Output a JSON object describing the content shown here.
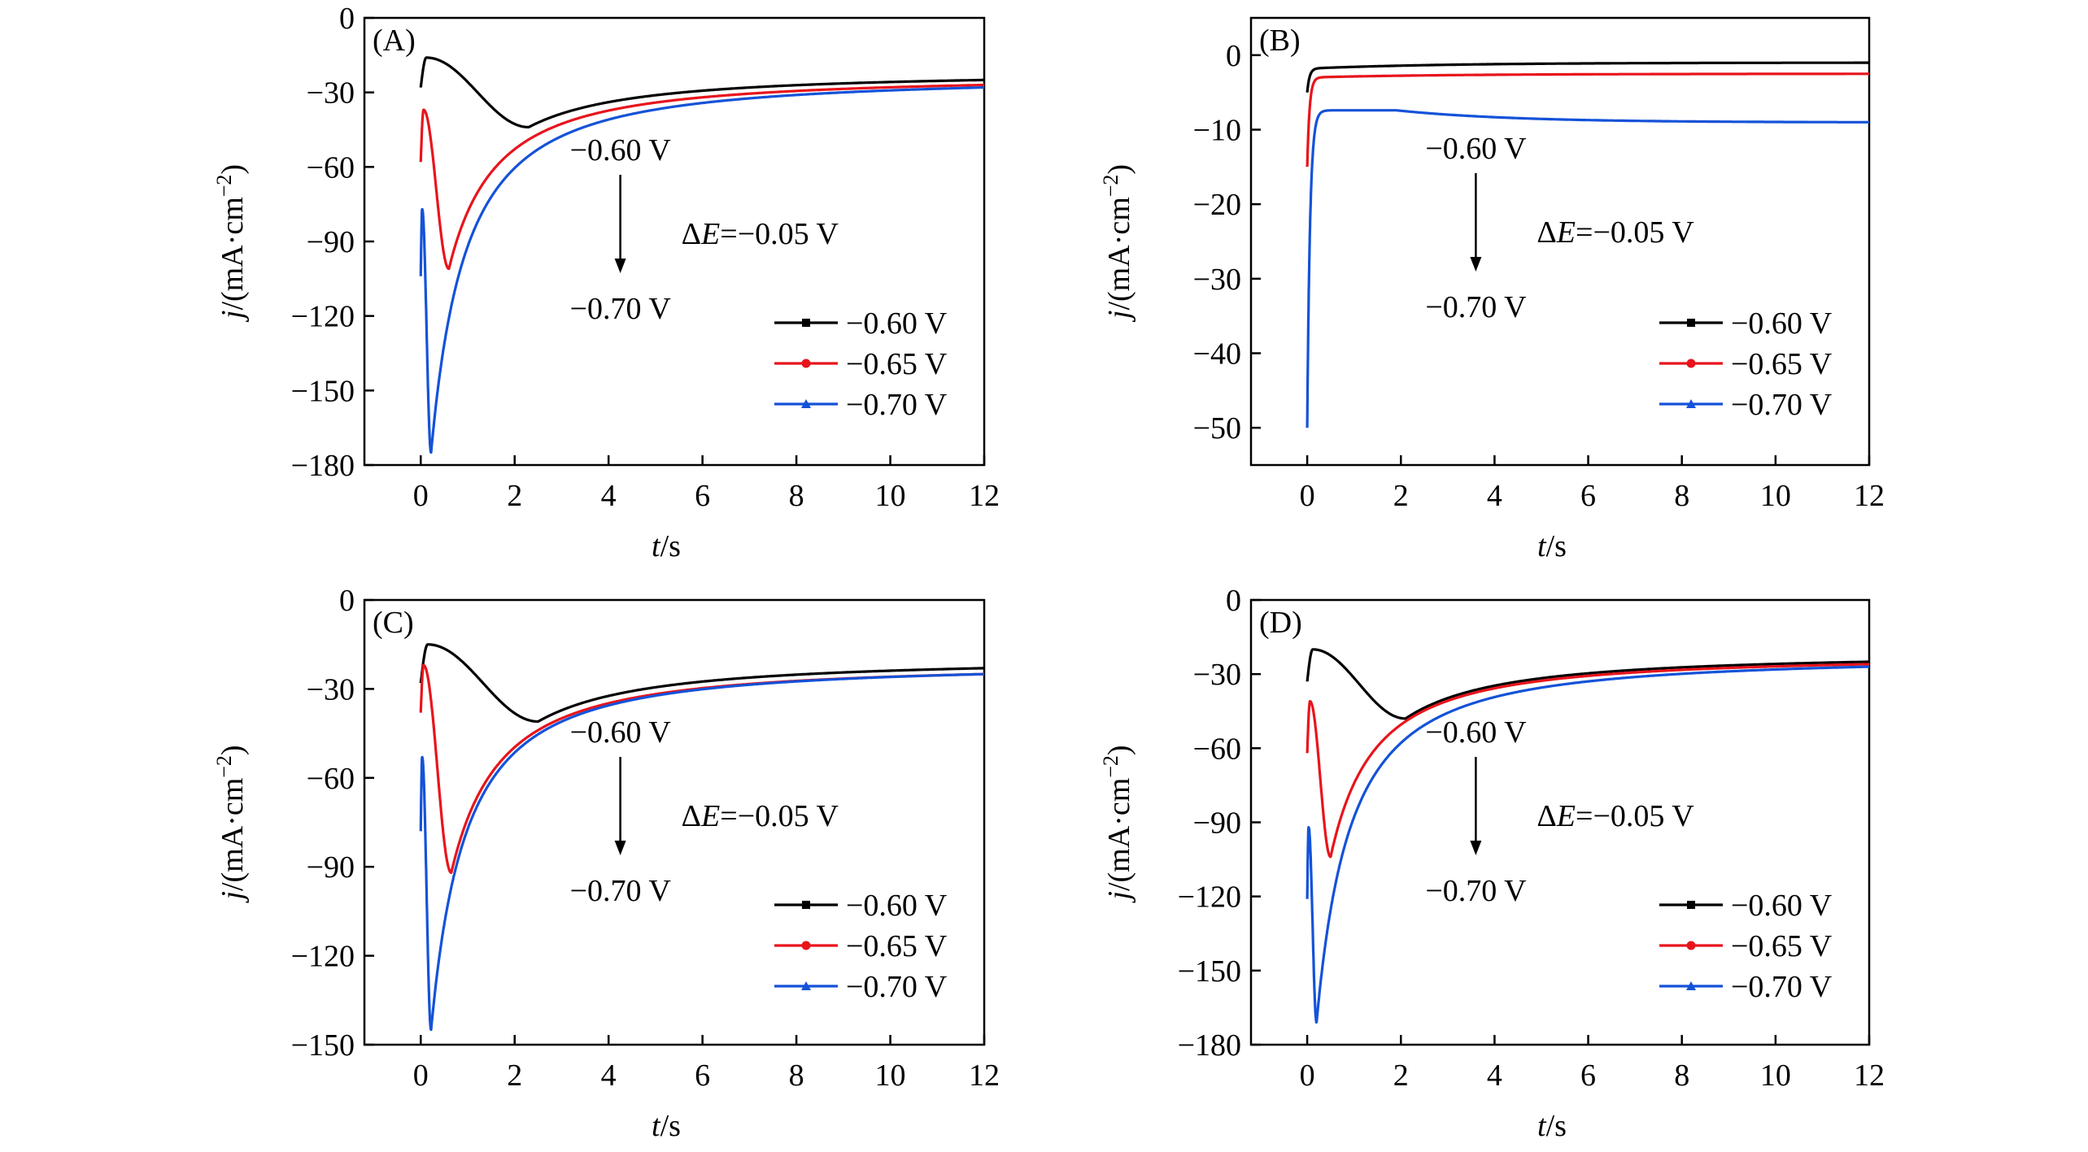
{
  "chart_data": [
    {
      "id": "A",
      "type": "line",
      "panel_label": "(A)",
      "xlabel": "t",
      "xlabel_unit": "/s",
      "ylabel_sym": "j",
      "ylabel_unit": "/(mA·cm",
      "ylabel_exp": "−2",
      "ylabel_close": ")",
      "xlim": [
        -1.2,
        12
      ],
      "ylim": [
        -180,
        0
      ],
      "xticks": [
        0,
        2,
        4,
        6,
        8,
        10,
        12
      ],
      "yticks": [
        0,
        -30,
        -60,
        -90,
        -120,
        -150,
        -180
      ],
      "ytick_labels": [
        "0",
        "−30",
        "−60",
        "−90",
        "−120",
        "−150",
        "−180"
      ],
      "annotation": {
        "from": "−0.60 V",
        "to": "−0.70 V",
        "delta_sym": "E",
        "delta_prefix": "Δ",
        "delta_value": "=−0.05 V"
      },
      "series": [
        {
          "name": "−0.60 V",
          "color": "#000000",
          "marker": "square",
          "t0": 0.0,
          "j0": -28,
          "t_peak": 0.12,
          "j_peak": -16,
          "t_min": 2.3,
          "j_min": -44,
          "j_end": -25
        },
        {
          "name": "−0.65 V",
          "color": "#e8141c",
          "marker": "circle",
          "t0": 0.0,
          "j0": -58,
          "t_peak": 0.06,
          "j_peak": -37,
          "t_min": 0.6,
          "j_min": -101,
          "j_end": -27
        },
        {
          "name": "−0.70 V",
          "color": "#1452d8",
          "marker": "triangle",
          "t0": 0.0,
          "j0": -104,
          "t_peak": 0.03,
          "j_peak": -77,
          "t_min": 0.22,
          "j_min": -175,
          "j_end": -28
        }
      ]
    },
    {
      "id": "B",
      "type": "line",
      "panel_label": "(B)",
      "xlabel": "t",
      "xlabel_unit": "/s",
      "ylabel_sym": "j",
      "ylabel_unit": "/(mA·cm",
      "ylabel_exp": "−2",
      "ylabel_close": ")",
      "xlim": [
        -1.2,
        12
      ],
      "ylim": [
        -55,
        5
      ],
      "xticks": [
        0,
        2,
        4,
        6,
        8,
        10,
        12
      ],
      "yticks": [
        0,
        -10,
        -20,
        -30,
        -40,
        -50
      ],
      "ytick_labels": [
        "0",
        "−10",
        "−20",
        "−30",
        "−40",
        "−50"
      ],
      "annotation": {
        "from": "−0.60 V",
        "to": "−0.70 V",
        "delta_sym": "E",
        "delta_prefix": "Δ",
        "delta_value": "=−0.05 V"
      },
      "series": [
        {
          "name": "−0.60 V",
          "color": "#000000",
          "marker": "square",
          "kind": "rise",
          "j0": -5,
          "j_mid": -1.8,
          "j_end": -1.0
        },
        {
          "name": "−0.65 V",
          "color": "#e8141c",
          "marker": "circle",
          "kind": "rise",
          "j0": -15,
          "j_mid": -3.0,
          "j_end": -2.5
        },
        {
          "name": "−0.70 V",
          "color": "#1452d8",
          "marker": "triangle",
          "kind": "rise_dip",
          "j0": -50,
          "t_peak": 1.9,
          "j_peak": -7.4,
          "j_end": -9.0
        }
      ]
    },
    {
      "id": "C",
      "type": "line",
      "panel_label": "(C)",
      "xlabel": "t",
      "xlabel_unit": "/s",
      "ylabel_sym": "j",
      "ylabel_unit": "/(mA·cm",
      "ylabel_exp": "−2",
      "ylabel_close": ")",
      "xlim": [
        -1.2,
        12
      ],
      "ylim": [
        -150,
        0
      ],
      "xticks": [
        0,
        2,
        4,
        6,
        8,
        10,
        12
      ],
      "yticks": [
        0,
        -30,
        -60,
        -90,
        -120,
        -150
      ],
      "ytick_labels": [
        "0",
        "−30",
        "−60",
        "−90",
        "−120",
        "−150"
      ],
      "annotation": {
        "from": "−0.60 V",
        "to": "−0.70 V",
        "delta_sym": "E",
        "delta_prefix": "Δ",
        "delta_value": "=−0.05 V"
      },
      "series": [
        {
          "name": "−0.60 V",
          "color": "#000000",
          "marker": "square",
          "t0": 0.0,
          "j0": -28,
          "t_peak": 0.15,
          "j_peak": -15,
          "t_min": 2.5,
          "j_min": -41,
          "j_end": -23
        },
        {
          "name": "−0.65 V",
          "color": "#e8141c",
          "marker": "circle",
          "t0": 0.0,
          "j0": -38,
          "t_peak": 0.06,
          "j_peak": -22,
          "t_min": 0.65,
          "j_min": -92,
          "j_end": -25
        },
        {
          "name": "−0.70 V",
          "color": "#1452d8",
          "marker": "triangle",
          "t0": 0.0,
          "j0": -78,
          "t_peak": 0.03,
          "j_peak": -53,
          "t_min": 0.22,
          "j_min": -145,
          "j_end": -25
        }
      ]
    },
    {
      "id": "D",
      "type": "line",
      "panel_label": "(D)",
      "xlabel": "t",
      "xlabel_unit": "/s",
      "ylabel_sym": "j",
      "ylabel_unit": "/(mA·cm",
      "ylabel_exp": "−2",
      "ylabel_close": ")",
      "xlim": [
        -1.2,
        12
      ],
      "ylim": [
        -180,
        0
      ],
      "xticks": [
        0,
        2,
        4,
        6,
        8,
        10,
        12
      ],
      "yticks": [
        0,
        -30,
        -60,
        -90,
        -120,
        -150,
        -180
      ],
      "ytick_labels": [
        "0",
        "−30",
        "−60",
        "−90",
        "−120",
        "−150",
        "−180"
      ],
      "annotation": {
        "from": "−0.60 V",
        "to": "−0.70 V",
        "delta_sym": "E",
        "delta_prefix": "Δ",
        "delta_value": "=−0.05 V"
      },
      "series": [
        {
          "name": "−0.60 V",
          "color": "#000000",
          "marker": "square",
          "t0": 0.0,
          "j0": -33,
          "t_peak": 0.12,
          "j_peak": -20,
          "t_min": 2.1,
          "j_min": -48,
          "j_end": -25
        },
        {
          "name": "−0.65 V",
          "color": "#e8141c",
          "marker": "circle",
          "t0": 0.0,
          "j0": -62,
          "t_peak": 0.06,
          "j_peak": -41,
          "t_min": 0.5,
          "j_min": -104,
          "j_end": -26
        },
        {
          "name": "−0.70 V",
          "color": "#1452d8",
          "marker": "triangle",
          "t0": 0.0,
          "j0": -121,
          "t_peak": 0.03,
          "j_peak": -92,
          "t_min": 0.2,
          "j_min": -171,
          "j_end": -27
        }
      ]
    }
  ]
}
